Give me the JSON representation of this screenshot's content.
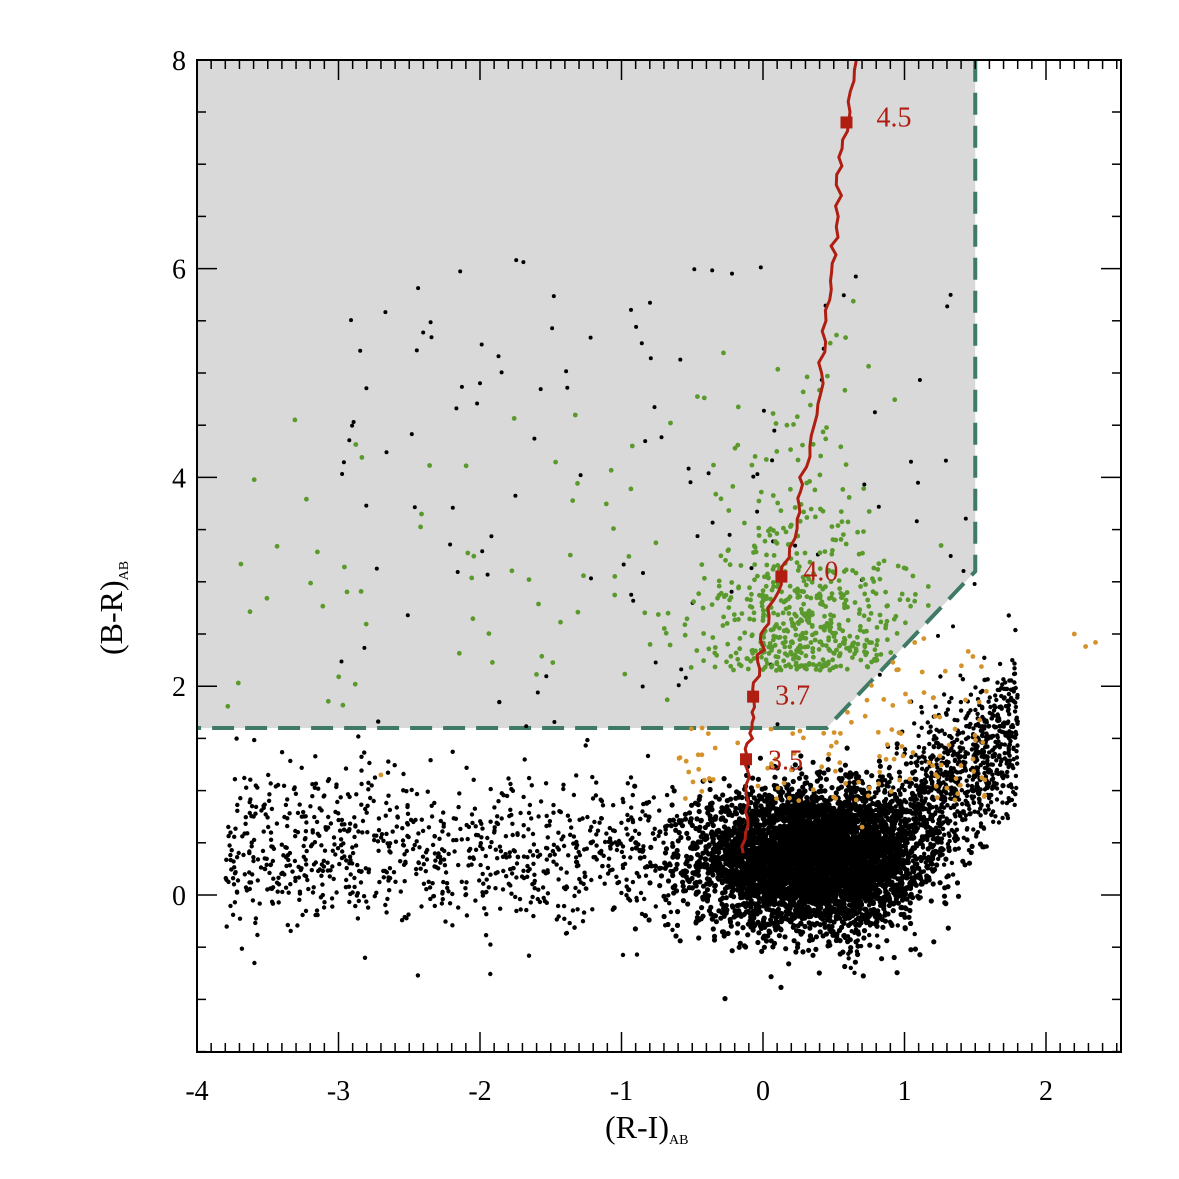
{
  "chart_data": {
    "type": "scatter",
    "title": "",
    "xlabel": {
      "main": "(R-I)",
      "sub": "AB"
    },
    "ylabel": {
      "main": "(B-R)",
      "sub": "AB"
    },
    "xlim": [
      -4,
      2.5
    ],
    "ylim": [
      -1.5,
      8
    ],
    "xticks": [
      -4,
      -3,
      -2,
      -1,
      0,
      1,
      2
    ],
    "yticks": [
      0,
      2,
      4,
      6,
      8
    ],
    "xtick_labels": [
      "-4",
      "-3",
      "-2",
      "-1",
      "0",
      "1",
      "2"
    ],
    "ytick_labels": [
      "0",
      "2",
      "4",
      "6",
      "8"
    ],
    "selection_region": {
      "description": "shaded color-selection region",
      "vertices": [
        [
          -4,
          8
        ],
        [
          1.5,
          8
        ],
        [
          1.5,
          3.1
        ],
        [
          0.45,
          1.6
        ],
        [
          -4,
          1.6
        ]
      ],
      "fill": "#d9d9d9",
      "border_color": "#3f7a66"
    },
    "track": {
      "color": "#b01e12",
      "points": [
        [
          -0.14,
          0.4
        ],
        [
          -0.12,
          0.8
        ],
        [
          -0.12,
          1.3
        ],
        [
          -0.08,
          1.6
        ],
        [
          -0.07,
          1.9
        ],
        [
          -0.02,
          2.3
        ],
        [
          0.02,
          2.6
        ],
        [
          0.13,
          3.05
        ],
        [
          0.24,
          3.6
        ],
        [
          0.28,
          4.0
        ],
        [
          0.38,
          4.6
        ],
        [
          0.42,
          5.2
        ],
        [
          0.47,
          5.8
        ],
        [
          0.51,
          6.3
        ],
        [
          0.54,
          6.9
        ],
        [
          0.59,
          7.4
        ],
        [
          0.66,
          8.0
        ]
      ],
      "markers": [
        {
          "x": -0.12,
          "y": 1.3,
          "label": "3.5"
        },
        {
          "x": -0.07,
          "y": 1.9,
          "label": "3.7"
        },
        {
          "x": 0.13,
          "y": 3.05,
          "label": "4.0"
        },
        {
          "x": 0.59,
          "y": 7.4,
          "label": "4.5"
        }
      ]
    },
    "series": [
      {
        "name": "",
        "color": "#000000",
        "description": "dense population concentrated near (0.3, 0.3), extended wing to (-3.8, 0) and red tail to (2.0, 1.5)",
        "approximate_count": 20000
      },
      {
        "name": "",
        "color": "#5a9a2c",
        "description": "objects inside selection region, concentrated at (0.3, 2.2)",
        "approximate_count": 600
      },
      {
        "name": "",
        "color": "#d4922a",
        "description": "objects just below selection region boundary",
        "approximate_count": 120
      }
    ],
    "grid": false,
    "legend": "none"
  }
}
